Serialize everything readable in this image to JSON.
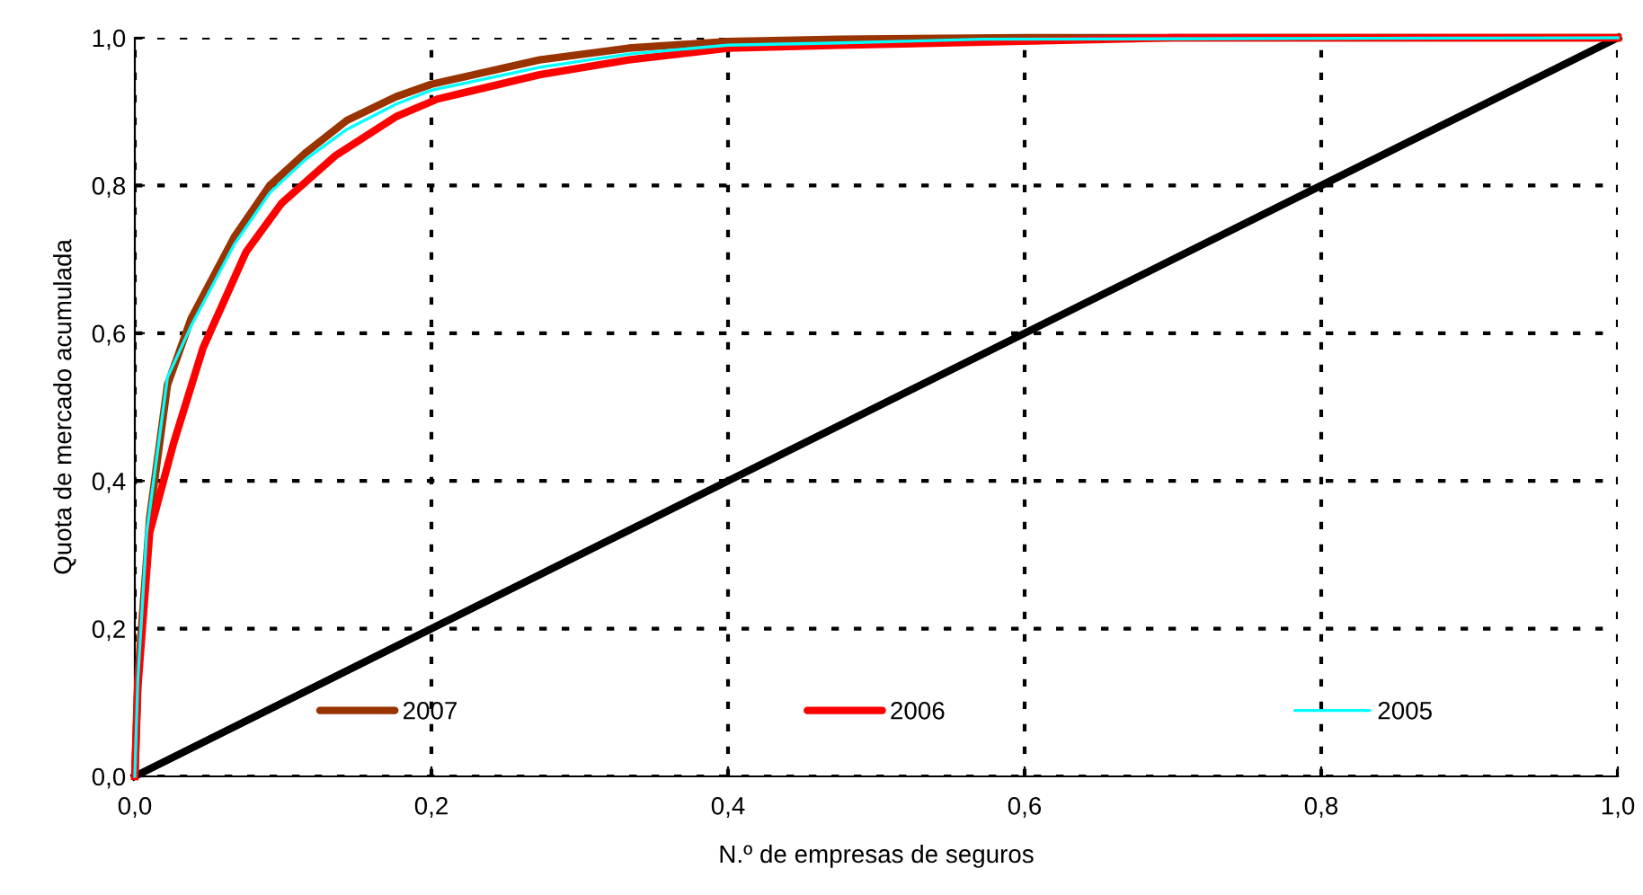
{
  "chart_data": {
    "type": "line",
    "xlabel": "N.º de empresas de seguros",
    "ylabel": "Quota de mercado acumulada",
    "xlim": [
      0,
      1
    ],
    "ylim": [
      0,
      1
    ],
    "xticks": [
      {
        "value": 0,
        "label": "0,0"
      },
      {
        "value": 0.2,
        "label": "0,2"
      },
      {
        "value": 0.4,
        "label": "0,4"
      },
      {
        "value": 0.6,
        "label": "0,6"
      },
      {
        "value": 0.8,
        "label": "0,8"
      },
      {
        "value": 1,
        "label": "1,0"
      }
    ],
    "yticks": [
      {
        "value": 0,
        "label": "0,0"
      },
      {
        "value": 0.2,
        "label": "0,2"
      },
      {
        "value": 0.4,
        "label": "0,4"
      },
      {
        "value": 0.6,
        "label": "0,6"
      },
      {
        "value": 0.8,
        "label": "0,8"
      },
      {
        "value": 1,
        "label": "1,0"
      }
    ],
    "grid": true,
    "legend": "bottom",
    "marker": "none",
    "line_style": "solid",
    "series": [
      {
        "name": "2007",
        "color": "#993300",
        "x": [
          0,
          0.002,
          0.01,
          0.022,
          0.038,
          0.067,
          0.091,
          0.115,
          0.143,
          0.176,
          0.2,
          0.273,
          0.333,
          0.4,
          0.475,
          0.6,
          1
        ],
        "values": [
          0,
          0.13,
          0.35,
          0.53,
          0.62,
          0.73,
          0.8,
          0.844,
          0.888,
          0.92,
          0.937,
          0.97,
          0.986,
          0.995,
          0.998,
          1,
          1
        ]
      },
      {
        "name": "2006",
        "color": "#ff0000",
        "x": [
          0,
          0.002,
          0.01,
          0.026,
          0.046,
          0.075,
          0.099,
          0.135,
          0.176,
          0.204,
          0.273,
          0.333,
          0.4,
          0.475,
          0.572,
          0.7,
          1
        ],
        "values": [
          0,
          0.12,
          0.33,
          0.45,
          0.58,
          0.71,
          0.776,
          0.84,
          0.893,
          0.917,
          0.95,
          0.97,
          0.986,
          0.99,
          0.994,
          1,
          1
        ]
      },
      {
        "name": "2005",
        "color": "#00ffff",
        "x": [
          0,
          0.002,
          0.008,
          0.022,
          0.038,
          0.067,
          0.091,
          0.115,
          0.143,
          0.176,
          0.2,
          0.273,
          0.333,
          0.4,
          0.475,
          0.572,
          1
        ],
        "values": [
          0,
          0.13,
          0.33,
          0.54,
          0.61,
          0.72,
          0.79,
          0.835,
          0.876,
          0.91,
          0.929,
          0.96,
          0.978,
          0.99,
          0.993,
          0.998,
          1
        ]
      },
      {
        "color": "#000000",
        "x": [
          0,
          1
        ],
        "values": [
          0,
          1
        ]
      }
    ]
  }
}
